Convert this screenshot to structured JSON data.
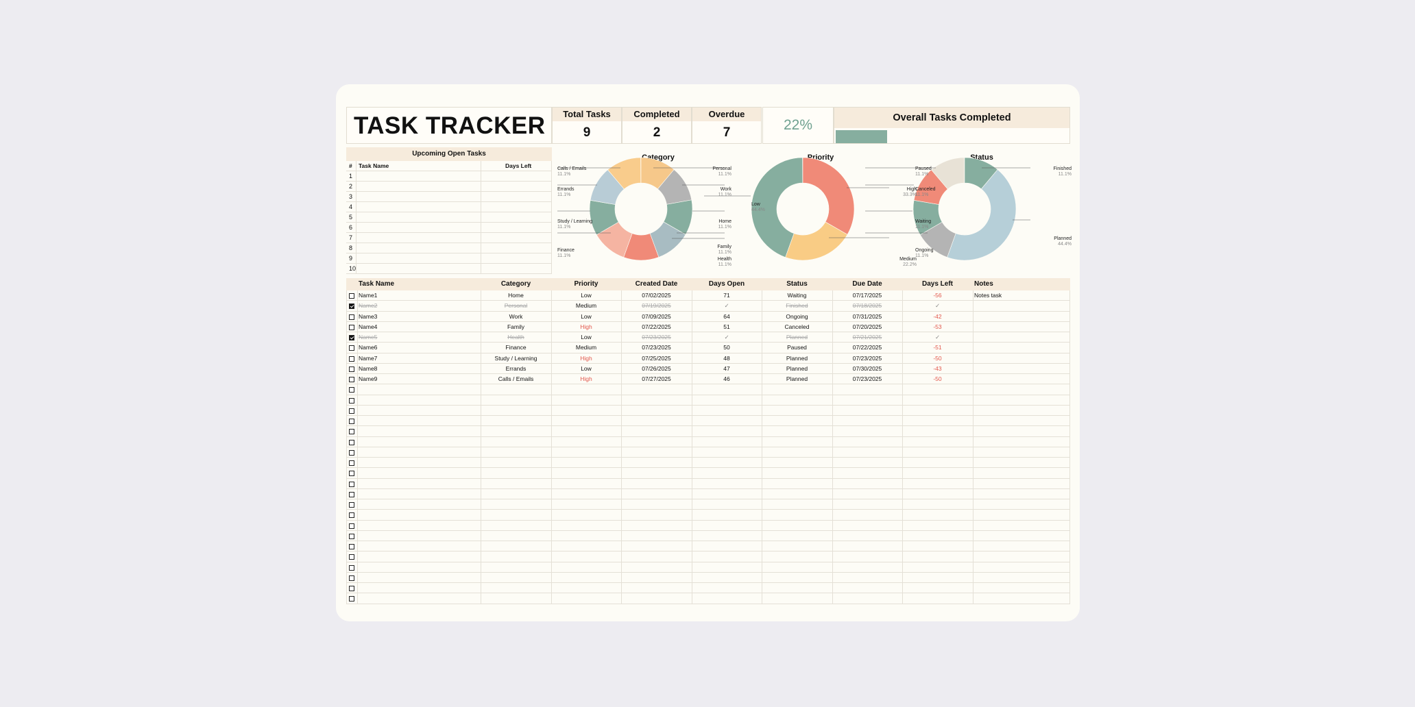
{
  "header": {
    "title": "TASK TRACKER",
    "stats": [
      {
        "label": "Total Tasks",
        "value": "9"
      },
      {
        "label": "Completed",
        "value": "2"
      },
      {
        "label": "Overdue",
        "value": "7"
      }
    ],
    "percent": "22%",
    "overall_label": "Overall Tasks Completed",
    "overall_fraction": 0.22
  },
  "upcoming": {
    "title": "Upcoming Open Tasks",
    "col_num": "#",
    "col_name": "Task Name",
    "col_days": "Days Left",
    "rows": [
      "1",
      "2",
      "3",
      "4",
      "5",
      "6",
      "7",
      "8",
      "9",
      "10"
    ]
  },
  "charts": {
    "category": {
      "title": "Category",
      "slices": [
        {
          "name": "Personal",
          "pct": "11.1%",
          "color": "#f6c88a"
        },
        {
          "name": "Work",
          "pct": "11.1%",
          "color": "#b4b4b4"
        },
        {
          "name": "Home",
          "pct": "11.1%",
          "color": "#86ae9f"
        },
        {
          "name": "Family",
          "pct": "11.1%",
          "color": "#a8bcc2"
        },
        {
          "name": "Health",
          "pct": "11.1%",
          "color": "#f08a78"
        },
        {
          "name": "Finance",
          "pct": "11.1%",
          "color": "#f5b4a2"
        },
        {
          "name": "Study / Learning",
          "pct": "11.1%",
          "color": "#86ae9f"
        },
        {
          "name": "Errands",
          "pct": "11.1%",
          "color": "#b8ccd6"
        },
        {
          "name": "Calls / Emails",
          "pct": "11.1%",
          "color": "#f9cc8c"
        }
      ]
    },
    "priority": {
      "title": "Priority",
      "slices": [
        {
          "name": "High",
          "pct": "33.3%",
          "color": "#f08a78"
        },
        {
          "name": "Medium",
          "pct": "22.2%",
          "color": "#f9cc85"
        },
        {
          "name": "Low",
          "pct": "44.4%",
          "color": "#86ae9f"
        }
      ]
    },
    "status": {
      "title": "Status",
      "slices": [
        {
          "name": "Finished",
          "pct": "11.1%",
          "color": "#86ae9f"
        },
        {
          "name": "Planned",
          "pct": "44.4%",
          "color": "#b6cfd8"
        },
        {
          "name": "Ongoing",
          "pct": "11.1%",
          "color": "#b4b4b4"
        },
        {
          "name": "Waiting",
          "pct": "11.1%",
          "color": "#86ae9f"
        },
        {
          "name": "Canceled",
          "pct": "11.1%",
          "color": "#f08a78"
        },
        {
          "name": "Paused",
          "pct": "11.1%",
          "color": "#e8e2d6"
        }
      ]
    }
  },
  "table": {
    "headers": [
      "Task Name",
      "Category",
      "Priority",
      "Created Date",
      "Days Open",
      "Status",
      "Due Date",
      "Days Left",
      "Notes"
    ],
    "rows": [
      {
        "done": false,
        "name": "Name1",
        "category": "Home",
        "priority": "Low",
        "created": "07/02/2025",
        "open": "71",
        "status": "Waiting",
        "due": "07/17/2025",
        "left": "-56",
        "notes": "Notes task"
      },
      {
        "done": true,
        "name": "Name2",
        "category": "Personal",
        "priority": "Medium",
        "created": "07/19/2025",
        "open": "✓",
        "status": "Finished",
        "due": "07/18/2025",
        "left": "✓",
        "notes": ""
      },
      {
        "done": false,
        "name": "Name3",
        "category": "Work",
        "priority": "Low",
        "created": "07/09/2025",
        "open": "64",
        "status": "Ongoing",
        "due": "07/31/2025",
        "left": "-42",
        "notes": ""
      },
      {
        "done": false,
        "name": "Name4",
        "category": "Family",
        "priority": "High",
        "created": "07/22/2025",
        "open": "51",
        "status": "Canceled",
        "due": "07/20/2025",
        "left": "-53",
        "notes": ""
      },
      {
        "done": true,
        "name": "Name5",
        "category": "Health",
        "priority": "Low",
        "created": "07/23/2025",
        "open": "✓",
        "status": "Planned",
        "due": "07/21/2025",
        "left": "✓",
        "notes": ""
      },
      {
        "done": false,
        "name": "Name6",
        "category": "Finance",
        "priority": "Medium",
        "created": "07/23/2025",
        "open": "50",
        "status": "Paused",
        "due": "07/22/2025",
        "left": "-51",
        "notes": ""
      },
      {
        "done": false,
        "name": "Name7",
        "category": "Study / Learning",
        "priority": "High",
        "created": "07/25/2025",
        "open": "48",
        "status": "Planned",
        "due": "07/23/2025",
        "left": "-50",
        "notes": ""
      },
      {
        "done": false,
        "name": "Name8",
        "category": "Errands",
        "priority": "Low",
        "created": "07/26/2025",
        "open": "47",
        "status": "Planned",
        "due": "07/30/2025",
        "left": "-43",
        "notes": ""
      },
      {
        "done": false,
        "name": "Name9",
        "category": "Calls / Emails",
        "priority": "High",
        "created": "07/27/2025",
        "open": "46",
        "status": "Planned",
        "due": "07/23/2025",
        "left": "-50",
        "notes": ""
      }
    ],
    "empty_rows": 21,
    "colors": {
      "red": "#e2574c",
      "muted": "#aaaaaa",
      "accent": "#86ae9f",
      "header_bg": "#f6ebdc"
    }
  }
}
